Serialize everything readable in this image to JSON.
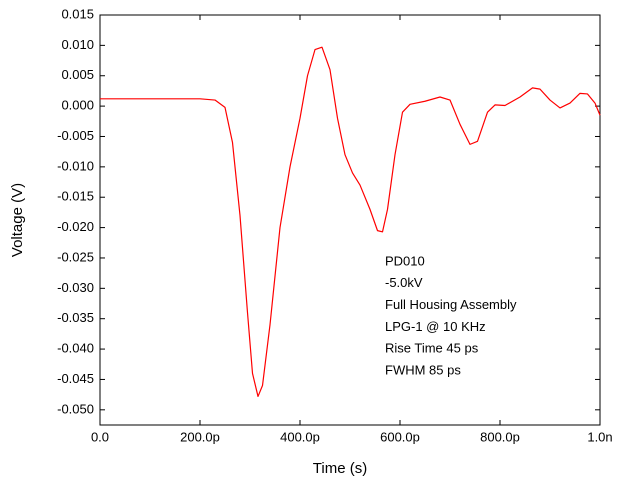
{
  "chart_data": {
    "type": "line",
    "x_label": "Time (s)",
    "y_label": "Voltage (V)",
    "x": [
      0,
      1e-10,
      2e-10,
      2.3e-10,
      2.5e-10,
      2.65e-10,
      2.8e-10,
      2.95e-10,
      3.05e-10,
      3.16e-10,
      3.25e-10,
      3.4e-10,
      3.6e-10,
      3.8e-10,
      4e-10,
      4.15e-10,
      4.3e-10,
      4.44e-10,
      4.6e-10,
      4.75e-10,
      4.9e-10,
      5.05e-10,
      5.2e-10,
      5.4e-10,
      5.55e-10,
      5.65e-10,
      5.75e-10,
      5.9e-10,
      6.05e-10,
      6.2e-10,
      6.5e-10,
      6.8e-10,
      7e-10,
      7.2e-10,
      7.4e-10,
      7.55e-10,
      7.75e-10,
      7.9e-10,
      8.1e-10,
      8.4e-10,
      8.65e-10,
      8.8e-10,
      9e-10,
      9.2e-10,
      9.4e-10,
      9.6e-10,
      9.75e-10,
      9.9e-10,
      1e-09
    ],
    "series": [
      {
        "name": "PD010",
        "color": "#ff0000",
        "values": [
          0.0012,
          0.0012,
          0.0012,
          0.001,
          -0.0002,
          -0.006,
          -0.018,
          -0.034,
          -0.044,
          -0.0478,
          -0.046,
          -0.036,
          -0.02,
          -0.01,
          -0.002,
          0.005,
          0.0093,
          0.0097,
          0.006,
          -0.002,
          -0.008,
          -0.011,
          -0.013,
          -0.017,
          -0.0205,
          -0.0207,
          -0.017,
          -0.008,
          -0.001,
          0.0003,
          0.0008,
          0.0015,
          0.001,
          -0.003,
          -0.0063,
          -0.0058,
          -0.001,
          0.0002,
          0.0001,
          0.0015,
          0.003,
          0.0028,
          0.001,
          -0.0003,
          0.0005,
          0.0021,
          0.002,
          0.0005,
          -0.0015
        ]
      }
    ],
    "xlim": [
      0,
      1e-09
    ],
    "ylim": [
      -0.0525,
      0.015
    ],
    "xticks": [
      {
        "value": 0,
        "label": "0.0"
      },
      {
        "value": 2e-10,
        "label": "200.0p"
      },
      {
        "value": 4e-10,
        "label": "400.0p"
      },
      {
        "value": 6e-10,
        "label": "600.0p"
      },
      {
        "value": 8e-10,
        "label": "800.0p"
      },
      {
        "value": 1e-09,
        "label": "1.0n"
      }
    ],
    "yticks": [
      {
        "value": 0.015,
        "label": "0.015"
      },
      {
        "value": 0.01,
        "label": "0.010"
      },
      {
        "value": 0.005,
        "label": "0.005"
      },
      {
        "value": 0,
        "label": "0.000"
      },
      {
        "value": -0.005,
        "label": "-0.005"
      },
      {
        "value": -0.01,
        "label": "-0.010"
      },
      {
        "value": -0.015,
        "label": "-0.015"
      },
      {
        "value": -0.02,
        "label": "-0.020"
      },
      {
        "value": -0.025,
        "label": "-0.025"
      },
      {
        "value": -0.03,
        "label": "-0.030"
      },
      {
        "value": -0.035,
        "label": "-0.035"
      },
      {
        "value": -0.04,
        "label": "-0.040"
      },
      {
        "value": -0.045,
        "label": "-0.045"
      },
      {
        "value": -0.05,
        "label": "-0.050"
      }
    ],
    "annotations": [
      "PD010",
      "-5.0kV",
      "Full Housing Assembly",
      "LPG-1 @ 10 KHz",
      "Rise Time 45 ps",
      "FWHM 85 ps"
    ]
  }
}
